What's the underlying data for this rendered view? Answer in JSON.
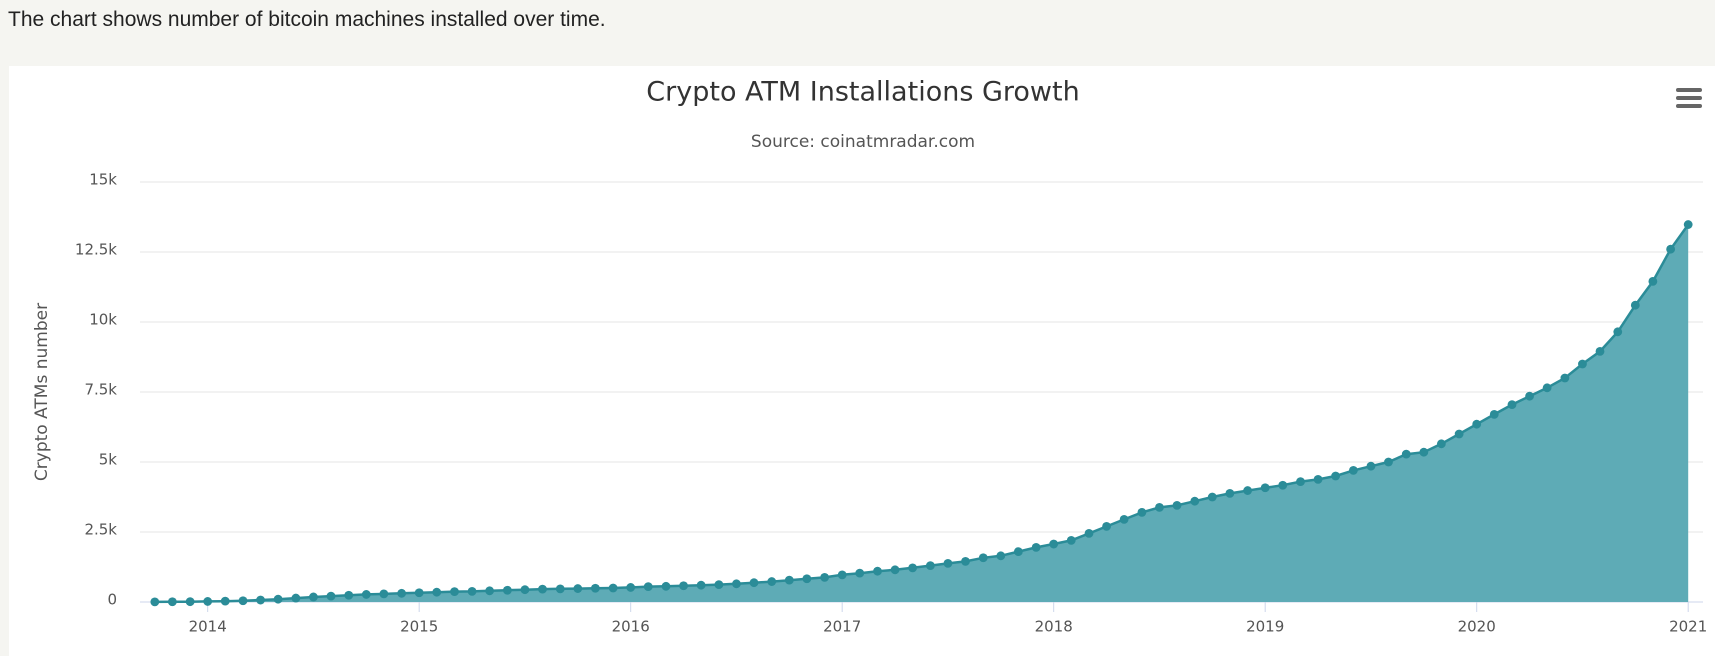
{
  "intro": "The chart shows number of bitcoin machines installed over time.",
  "chart_data": {
    "type": "area",
    "title": "Crypto ATM Installations Growth",
    "subtitle": "Source: coinatmradar.com",
    "y_label": "Crypto ATMs number",
    "color": "#2b8c98",
    "fill": "#5eabb6",
    "grid": true,
    "xlim": [
      2013.68,
      2021.07
    ],
    "xticks": [
      2014,
      2015,
      2016,
      2017,
      2018,
      2019,
      2020,
      2021
    ],
    "ylim": [
      0,
      15000
    ],
    "yticks": [
      0,
      {
        "value": 2500,
        "label": "2.5k"
      },
      {
        "value": 5000,
        "label": "5k"
      },
      {
        "value": 7500,
        "label": "7.5k"
      },
      {
        "value": 10000,
        "label": "10k"
      },
      {
        "value": 12500,
        "label": "12.5k"
      },
      {
        "value": 15000,
        "label": "15k"
      }
    ],
    "x": [
      2013.75,
      2013.833,
      2013.917,
      2014,
      2014.083,
      2014.167,
      2014.25,
      2014.333,
      2014.417,
      2014.5,
      2014.583,
      2014.667,
      2014.75,
      2014.833,
      2014.917,
      2015,
      2015.083,
      2015.167,
      2015.25,
      2015.333,
      2015.417,
      2015.5,
      2015.583,
      2015.667,
      2015.75,
      2015.833,
      2015.917,
      2016,
      2016.083,
      2016.167,
      2016.25,
      2016.333,
      2016.417,
      2016.5,
      2016.583,
      2016.667,
      2016.75,
      2016.833,
      2016.917,
      2017,
      2017.083,
      2017.167,
      2017.25,
      2017.333,
      2017.417,
      2017.5,
      2017.583,
      2017.667,
      2017.75,
      2017.833,
      2017.917,
      2018,
      2018.083,
      2018.167,
      2018.25,
      2018.333,
      2018.417,
      2018.5,
      2018.583,
      2018.667,
      2018.75,
      2018.833,
      2018.917,
      2019,
      2019.083,
      2019.167,
      2019.25,
      2019.333,
      2019.417,
      2019.5,
      2019.583,
      2019.667,
      2019.75,
      2019.833,
      2019.917,
      2020,
      2020.083,
      2020.167,
      2020.25,
      2020.333,
      2020.417,
      2020.5,
      2020.583,
      2020.667,
      2020.75,
      2020.833,
      2020.917,
      2021
    ],
    "values": [
      5,
      8,
      12,
      20,
      30,
      45,
      70,
      100,
      140,
      180,
      210,
      240,
      270,
      290,
      310,
      330,
      350,
      370,
      380,
      400,
      420,
      440,
      460,
      470,
      480,
      490,
      500,
      520,
      550,
      560,
      580,
      600,
      620,
      650,
      690,
      730,
      780,
      830,
      880,
      970,
      1030,
      1100,
      1150,
      1220,
      1300,
      1380,
      1450,
      1580,
      1650,
      1800,
      1950,
      2070,
      2200,
      2450,
      2700,
      2950,
      3200,
      3380,
      3450,
      3600,
      3750,
      3880,
      3980,
      4080,
      4170,
      4300,
      4380,
      4500,
      4700,
      4850,
      5000,
      5280,
      5350,
      5650,
      6000,
      6350,
      6700,
      7050,
      7350,
      7650,
      8000,
      8500,
      8950,
      9650,
      10600,
      11450,
      12600,
      13480
    ]
  }
}
